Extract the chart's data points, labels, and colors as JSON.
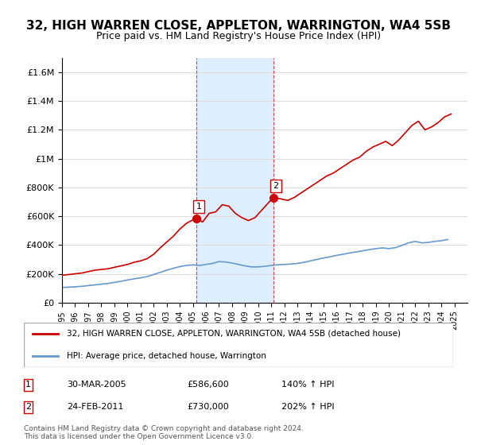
{
  "title": "32, HIGH WARREN CLOSE, APPLETON, WARRINGTON, WA4 5SB",
  "subtitle": "Price paid vs. HM Land Registry's House Price Index (HPI)",
  "title_fontsize": 11,
  "subtitle_fontsize": 9,
  "ylabel_ticks": [
    "£0",
    "£200K",
    "£400K",
    "£600K",
    "£800K",
    "£1M",
    "£1.2M",
    "£1.4M",
    "£1.6M"
  ],
  "ytick_values": [
    0,
    200000,
    400000,
    600000,
    800000,
    1000000,
    1200000,
    1400000,
    1600000
  ],
  "ylim": [
    0,
    1700000
  ],
  "xlim_start": 1995.0,
  "xlim_end": 2026.0,
  "red_line_color": "#cc0000",
  "blue_line_color": "#6699cc",
  "shade_color": "#ddeeff",
  "shade_alpha": 0.5,
  "marker1_x": 2005.25,
  "marker1_y": 586600,
  "marker2_x": 2011.15,
  "marker2_y": 730000,
  "shade_x_start": 2005.25,
  "shade_x_end": 2011.15,
  "legend1_label": "32, HIGH WARREN CLOSE, APPLETON, WARRINGTON, WA4 5SB (detached house)",
  "legend2_label": "HPI: Average price, detached house, Warrington",
  "footnote": "Contains HM Land Registry data © Crown copyright and database right 2024.\nThis data is licensed under the Open Government Licence v3.0.",
  "table_rows": [
    {
      "num": "1",
      "date": "30-MAR-2005",
      "price": "£586,600",
      "hpi": "140% ↑ HPI"
    },
    {
      "num": "2",
      "date": "24-FEB-2011",
      "price": "£730,000",
      "hpi": "202% ↑ HPI"
    }
  ],
  "red_x": [
    1995.0,
    1995.5,
    1996.0,
    1996.5,
    1997.0,
    1997.5,
    1998.0,
    1998.5,
    1999.0,
    1999.5,
    2000.0,
    2000.5,
    2001.0,
    2001.5,
    2002.0,
    2002.5,
    2003.0,
    2003.5,
    2004.0,
    2004.5,
    2005.25,
    2005.75,
    2006.25,
    2006.75,
    2007.25,
    2007.75,
    2008.25,
    2008.75,
    2009.25,
    2009.75,
    2010.25,
    2010.75,
    2011.15,
    2011.75,
    2012.25,
    2012.75,
    2013.25,
    2013.75,
    2014.25,
    2014.75,
    2015.25,
    2015.75,
    2016.25,
    2016.75,
    2017.25,
    2017.75,
    2018.25,
    2018.75,
    2019.25,
    2019.75,
    2020.25,
    2020.75,
    2021.25,
    2021.75,
    2022.25,
    2022.75,
    2023.25,
    2023.75,
    2024.25,
    2024.75
  ],
  "red_y": [
    190000,
    195000,
    200000,
    205000,
    215000,
    225000,
    230000,
    235000,
    245000,
    255000,
    265000,
    280000,
    290000,
    305000,
    335000,
    380000,
    420000,
    460000,
    510000,
    550000,
    586600,
    560000,
    620000,
    630000,
    680000,
    670000,
    620000,
    590000,
    570000,
    590000,
    640000,
    690000,
    730000,
    720000,
    710000,
    730000,
    760000,
    790000,
    820000,
    850000,
    880000,
    900000,
    930000,
    960000,
    990000,
    1010000,
    1050000,
    1080000,
    1100000,
    1120000,
    1090000,
    1130000,
    1180000,
    1230000,
    1260000,
    1200000,
    1220000,
    1250000,
    1290000,
    1310000
  ],
  "blue_x": [
    1995.0,
    1995.5,
    1996.0,
    1996.5,
    1997.0,
    1997.5,
    1998.0,
    1998.5,
    1999.0,
    1999.5,
    2000.0,
    2000.5,
    2001.0,
    2001.5,
    2002.0,
    2002.5,
    2003.0,
    2003.5,
    2004.0,
    2004.5,
    2005.0,
    2005.5,
    2006.0,
    2006.5,
    2007.0,
    2007.5,
    2008.0,
    2008.5,
    2009.0,
    2009.5,
    2010.0,
    2010.5,
    2011.0,
    2011.5,
    2012.0,
    2012.5,
    2013.0,
    2013.5,
    2014.0,
    2014.5,
    2015.0,
    2015.5,
    2016.0,
    2016.5,
    2017.0,
    2017.5,
    2018.0,
    2018.5,
    2019.0,
    2019.5,
    2020.0,
    2020.5,
    2021.0,
    2021.5,
    2022.0,
    2022.5,
    2023.0,
    2023.5,
    2024.0,
    2024.5
  ],
  "blue_y": [
    105000,
    107000,
    110000,
    113000,
    118000,
    123000,
    128000,
    133000,
    140000,
    148000,
    157000,
    165000,
    172000,
    180000,
    195000,
    210000,
    225000,
    238000,
    250000,
    258000,
    262000,
    258000,
    265000,
    272000,
    285000,
    282000,
    275000,
    265000,
    255000,
    248000,
    248000,
    252000,
    258000,
    263000,
    265000,
    268000,
    272000,
    280000,
    290000,
    300000,
    310000,
    318000,
    328000,
    336000,
    345000,
    352000,
    360000,
    368000,
    375000,
    380000,
    375000,
    382000,
    398000,
    415000,
    425000,
    415000,
    418000,
    425000,
    430000,
    438000
  ]
}
